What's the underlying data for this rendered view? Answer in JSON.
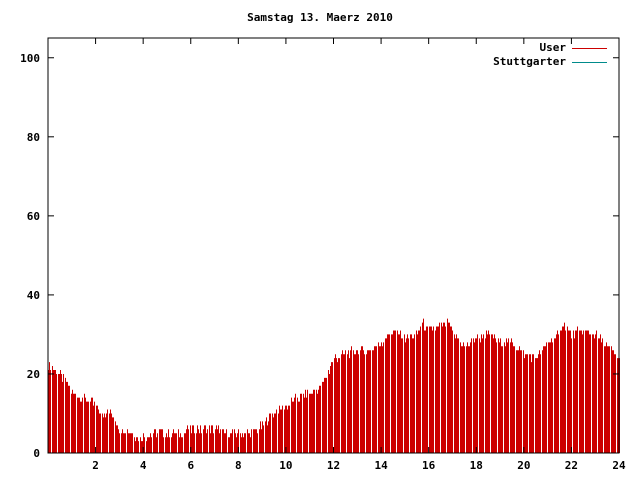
{
  "chart_data": {
    "type": "bar",
    "title": "Samstag 13. Maerz 2010",
    "xlabel": "",
    "ylabel": "",
    "xlim": [
      0,
      24
    ],
    "ylim": [
      0,
      105
    ],
    "xticks": [
      "2",
      "4",
      "6",
      "8",
      "10",
      "12",
      "14",
      "16",
      "18",
      "20",
      "22",
      "24"
    ],
    "yticks": [
      "0",
      "20",
      "40",
      "60",
      "80",
      "100"
    ],
    "grid": false,
    "legend_position": "top-right",
    "series": [
      {
        "name": "User",
        "color": "#cc0000",
        "profile_x": [
          0,
          0.25,
          0.5,
          0.75,
          1.0,
          1.5,
          2.0,
          2.3,
          2.5,
          2.8,
          3.0,
          3.5,
          3.8,
          4.0,
          4.5,
          5.0,
          5.5,
          6.0,
          6.5,
          7.0,
          7.5,
          8.0,
          8.5,
          9.0,
          9.4,
          9.8,
          10.0,
          10.5,
          11.0,
          11.5,
          11.8,
          12.0,
          12.5,
          13.0,
          13.5,
          14.0,
          14.3,
          14.5,
          15.0,
          15.5,
          15.7,
          16.0,
          16.5,
          16.8,
          17.0,
          17.5,
          18.0,
          18.5,
          19.0,
          19.5,
          20.0,
          20.5,
          20.8,
          21.0,
          21.5,
          21.6,
          22.0,
          22.5,
          23.0,
          23.5,
          24.0
        ],
        "profile_y": [
          22,
          21,
          20,
          18,
          15,
          14,
          12,
          9,
          11,
          8,
          6,
          5,
          4,
          4,
          5,
          5,
          5,
          6,
          6,
          6,
          5,
          5,
          5,
          7,
          10,
          11,
          12,
          14,
          15,
          17,
          21,
          24,
          25,
          26,
          26,
          28,
          30,
          31,
          29,
          30,
          33,
          31,
          32,
          33,
          30,
          27,
          29,
          30,
          28,
          28,
          25,
          24,
          26,
          28,
          30,
          33,
          30,
          31,
          30,
          27,
          24
        ]
      },
      {
        "name": "Stuttgarter",
        "color": "#008b8b",
        "profile_x": [],
        "profile_y": []
      }
    ]
  }
}
